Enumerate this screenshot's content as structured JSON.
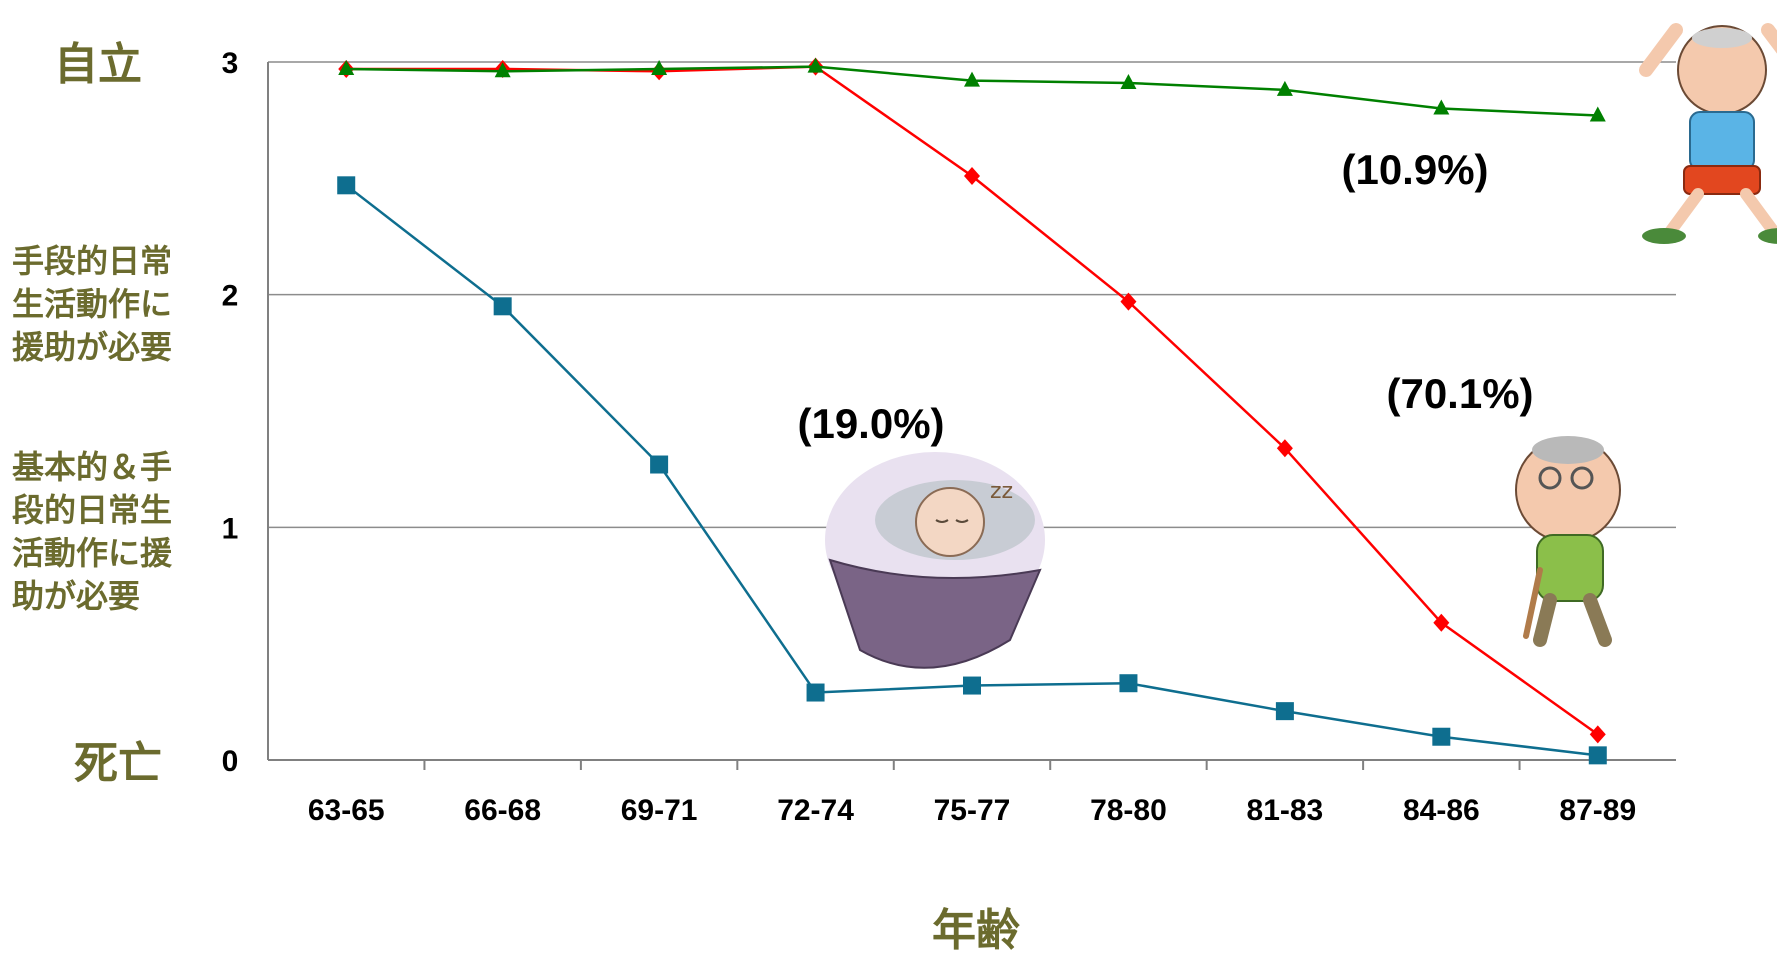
{
  "chart_data": {
    "type": "line",
    "xlabel": "年齢",
    "categories": [
      "63-65",
      "66-68",
      "69-71",
      "72-74",
      "75-77",
      "78-80",
      "81-83",
      "84-86",
      "87-89"
    ],
    "ylim": [
      0,
      3
    ],
    "y_ticks": [
      "0",
      "1",
      "2",
      "3"
    ],
    "grid": true,
    "level_labels": {
      "top": "自立",
      "two": [
        "手段的日常",
        "生活動作に",
        "援助が必要"
      ],
      "one": [
        "基本的＆手",
        "段的日常生",
        "活動作に援",
        "助が必要"
      ],
      "zero": "死亡"
    },
    "series": [
      {
        "color": "#008000",
        "marker": "triangle",
        "values": [
          2.97,
          2.96,
          2.97,
          2.98,
          2.92,
          2.91,
          2.88,
          2.8,
          2.77
        ],
        "share": "(10.9%)"
      },
      {
        "color": "#ff0000",
        "marker": "diamond",
        "values": [
          2.97,
          2.97,
          2.96,
          2.98,
          2.51,
          1.97,
          1.34,
          0.59,
          0.11
        ],
        "share": "(70.1%)"
      },
      {
        "color": "#0e6e8f",
        "marker": "square",
        "values": [
          2.47,
          1.95,
          1.27,
          0.29,
          0.32,
          0.33,
          0.21,
          0.1,
          0.02
        ],
        "share": "(19.0%)"
      }
    ],
    "colors": {
      "level_text": "#6b6b2e",
      "grid": "#8c8c8c"
    }
  }
}
